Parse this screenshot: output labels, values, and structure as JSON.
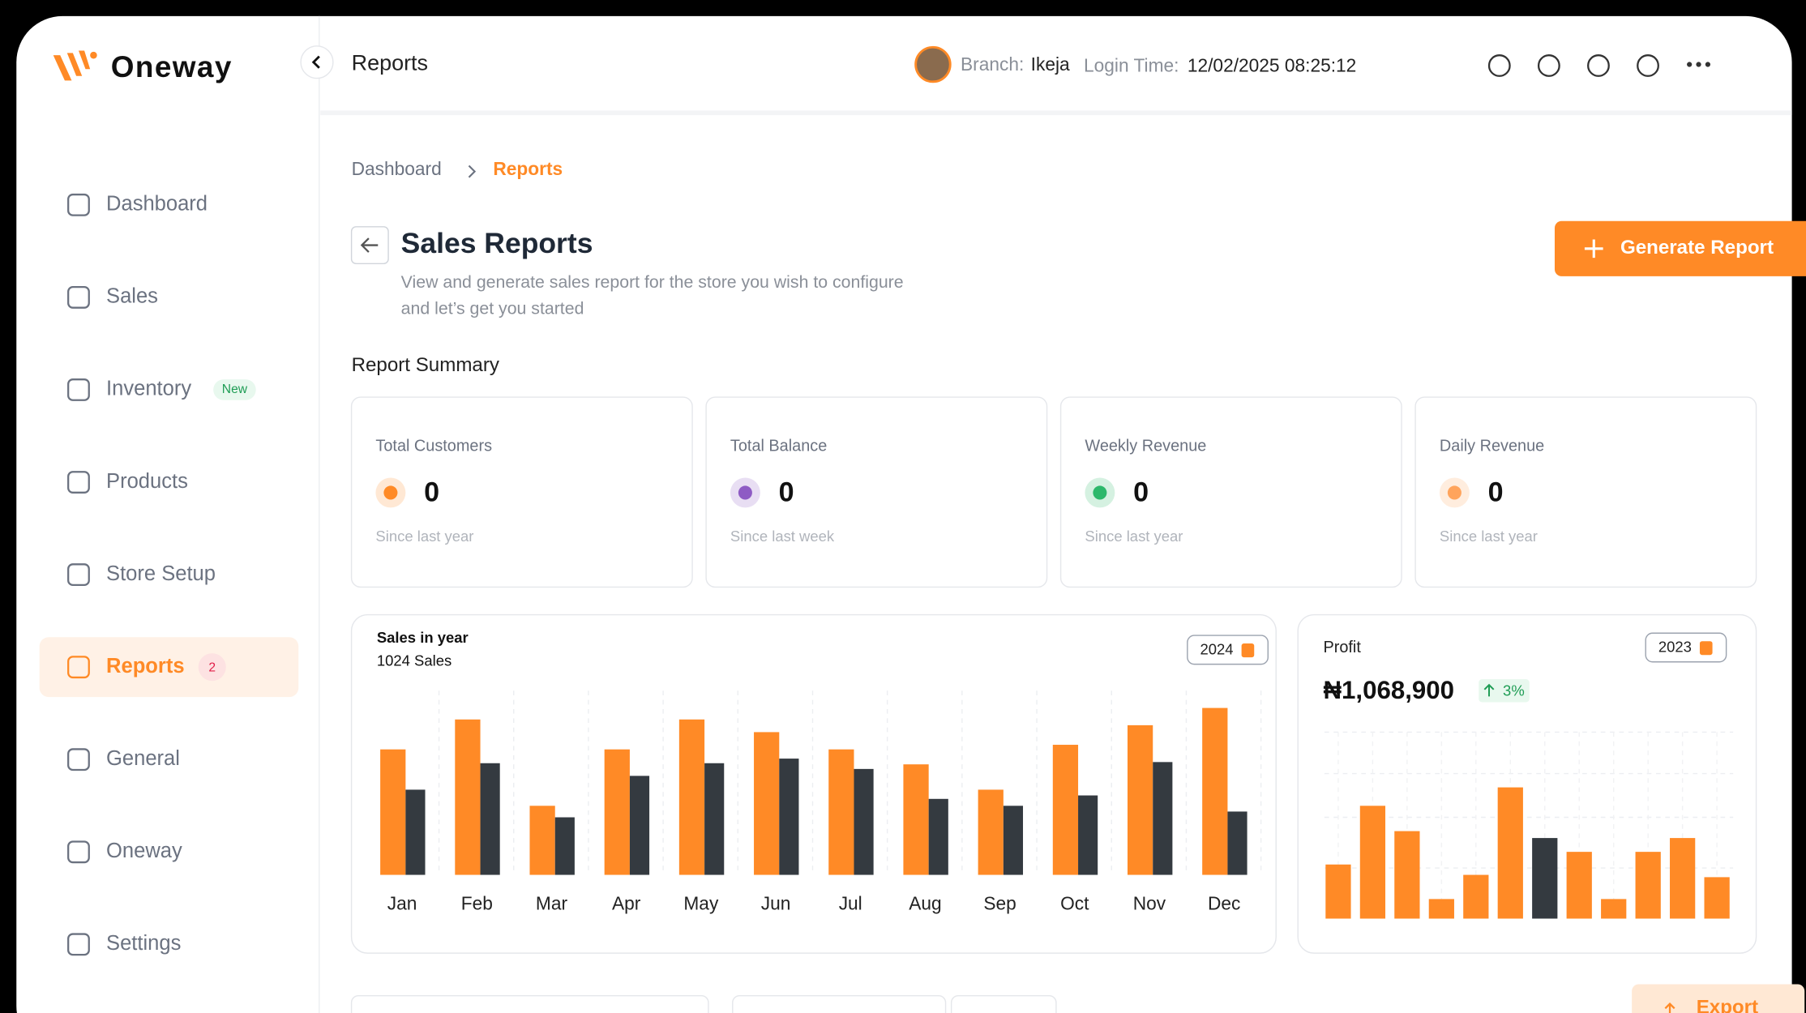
{
  "sidebar": {
    "brand": "Oneway",
    "nav": [
      {
        "label": "Dashboard"
      },
      {
        "label": "Sales"
      },
      {
        "label": "Inventory",
        "badge": "New"
      },
      {
        "label": "Products"
      },
      {
        "label": "Store Setup"
      },
      {
        "label": "Reports",
        "badge": 2,
        "active": true
      },
      {
        "label": "General"
      },
      {
        "label": "Oneway"
      },
      {
        "label": "Settings"
      }
    ]
  },
  "header": {
    "title": "Reports",
    "branch_label": "Branch:",
    "branch": "Ikeja",
    "login_label": "Login Time:",
    "login_time": "12/02/2025 08:25:12"
  },
  "breadcrumb": [
    "Dashboard",
    "Reports"
  ],
  "page": {
    "title": "Sales Reports",
    "description": [
      "View and generate sales report for the store you wish to configure",
      "and let’s get you started"
    ],
    "button": "Generate Report",
    "section_title": "Report Summary"
  },
  "cards": [
    {
      "label": "Total Customers",
      "value": 0,
      "note": "Since last year",
      "color": "#FF8A26"
    },
    {
      "label": "Total Balance",
      "value": 0,
      "note": "Since last week",
      "color": "#8E5BC4"
    },
    {
      "label": "Weekly Revenue",
      "value": 0,
      "note": "Since last year",
      "color": "#2DB86B"
    },
    {
      "label": "Daily Revenue",
      "value": 0,
      "note": "Since last year",
      "color": "#FFA45C"
    }
  ],
  "chart_data": [
    {
      "type": "bar",
      "title": "Sales in year",
      "subtitle": "1024 Sales",
      "year": "2024",
      "categories": [
        "Jan",
        "Feb",
        "Mar",
        "Apr",
        "May",
        "Jun",
        "Jul",
        "Aug",
        "Sep",
        "Oct",
        "Nov",
        "Dec"
      ],
      "series": [
        {
          "color": "#FF8A26",
          "values": [
            109,
            135,
            60,
            109,
            135,
            124,
            109,
            96,
            74,
            113,
            130,
            145
          ]
        },
        {
          "color": "#343A40",
          "values": [
            74,
            97,
            50,
            86,
            97,
            101,
            92,
            66,
            60,
            69,
            98,
            55
          ]
        }
      ],
      "ylim": [
        0,
        160
      ]
    },
    {
      "type": "bar",
      "title": "Profit",
      "total": "₦1,068,900",
      "change": "3%",
      "year": "2023",
      "values": [
        47,
        98,
        76,
        17,
        38,
        114,
        70,
        58,
        17,
        58,
        70,
        36
      ],
      "colors": [
        "#FF8A26",
        "#FF8A26",
        "#FF8A26",
        "#FF8A26",
        "#FF8A26",
        "#FF8A26",
        "#343A40",
        "#FF8A26",
        "#FF8A26",
        "#FF8A26",
        "#FF8A26",
        "#FF8A26"
      ],
      "ylim": [
        0,
        162
      ]
    }
  ],
  "footer": {
    "button": "Export"
  }
}
